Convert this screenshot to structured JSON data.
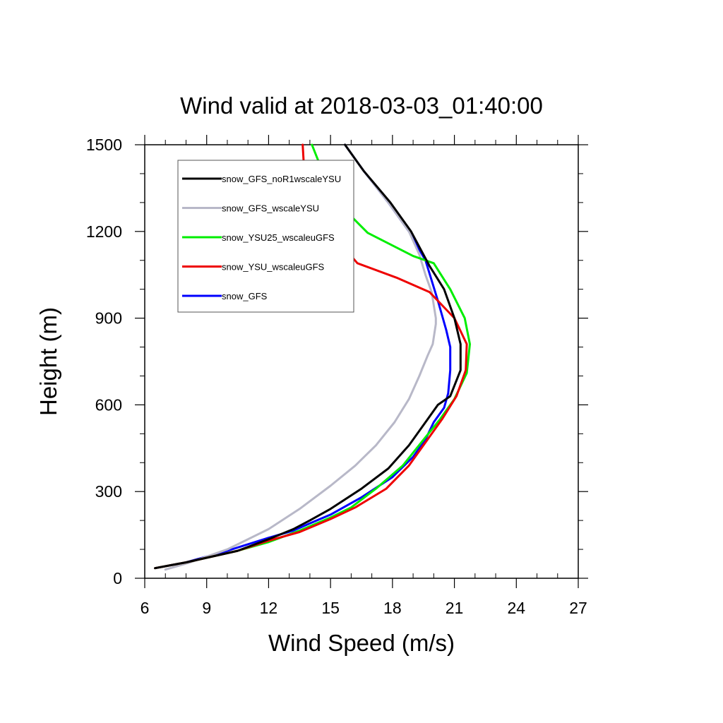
{
  "chart_data": {
    "type": "line",
    "title": "Wind valid at 2018-03-03_01:40:00",
    "xlabel": "Wind Speed (m/s)",
    "ylabel": "Height (m)",
    "xlim": [
      6,
      27
    ],
    "ylim": [
      0,
      1500
    ],
    "x_ticks": [
      6,
      9,
      12,
      15,
      18,
      21,
      24,
      27
    ],
    "y_ticks": [
      0,
      300,
      600,
      900,
      1200,
      1500
    ],
    "x_minor_step": 1,
    "y_minor_step": 100,
    "legend_position": "top-left",
    "series": [
      {
        "name": "snow_GFS",
        "color": "#0000ff",
        "points": [
          [
            6.5,
            35
          ],
          [
            8,
            55
          ],
          [
            10,
            95
          ],
          [
            12,
            140
          ],
          [
            13.2,
            165
          ],
          [
            14,
            190
          ],
          [
            15,
            220
          ],
          [
            16.5,
            280
          ],
          [
            18,
            350
          ],
          [
            19,
            420
          ],
          [
            19.6,
            480
          ],
          [
            20,
            540
          ],
          [
            20.5,
            590
          ],
          [
            20.7,
            640
          ],
          [
            20.8,
            720
          ],
          [
            20.8,
            800
          ],
          [
            20.6,
            860
          ],
          [
            20.2,
            960
          ],
          [
            19.6,
            1100
          ],
          [
            18.8,
            1200
          ],
          [
            17.8,
            1300
          ],
          [
            16.6,
            1410
          ],
          [
            15.7,
            1500
          ]
        ]
      },
      {
        "name": "snow_GFS_wscaleYSU",
        "color": "#b8b8c8",
        "points": [
          [
            7,
            30
          ],
          [
            8.2,
            55
          ],
          [
            10,
            100
          ],
          [
            12,
            170
          ],
          [
            13.5,
            240
          ],
          [
            15,
            320
          ],
          [
            16.2,
            390
          ],
          [
            17.2,
            460
          ],
          [
            18.1,
            540
          ],
          [
            18.8,
            620
          ],
          [
            19.3,
            700
          ],
          [
            19.7,
            770
          ],
          [
            19.95,
            810
          ],
          [
            20.1,
            880
          ],
          [
            20.1,
            900
          ],
          [
            19.9,
            990
          ],
          [
            19.6,
            1050
          ],
          [
            19.3,
            1120
          ],
          [
            18.8,
            1200
          ],
          [
            17.8,
            1300
          ],
          [
            16.6,
            1410
          ],
          [
            15.7,
            1500
          ]
        ]
      },
      {
        "name": "snow_YSU25_wscaleuGFS",
        "color": "#00ee00",
        "points": [
          [
            6.5,
            35
          ],
          [
            8,
            55
          ],
          [
            10.5,
            95
          ],
          [
            12,
            125
          ],
          [
            13.5,
            165
          ],
          [
            15,
            210
          ],
          [
            16,
            245
          ],
          [
            17.2,
            310
          ],
          [
            18.5,
            390
          ],
          [
            19.4,
            470
          ],
          [
            20.3,
            550
          ],
          [
            21,
            620
          ],
          [
            21.6,
            710
          ],
          [
            21.75,
            810
          ],
          [
            21.5,
            900
          ],
          [
            20.8,
            1000
          ],
          [
            20,
            1090
          ],
          [
            19,
            1115
          ],
          [
            16.8,
            1195
          ],
          [
            15.2,
            1310
          ],
          [
            14.6,
            1410
          ],
          [
            14.1,
            1500
          ]
        ]
      },
      {
        "name": "snow_YSU_wscaleuGFS",
        "color": "#ee0000",
        "points": [
          [
            6.5,
            35
          ],
          [
            8,
            55
          ],
          [
            10.5,
            95
          ],
          [
            12,
            130
          ],
          [
            13.5,
            160
          ],
          [
            15,
            205
          ],
          [
            16.2,
            245
          ],
          [
            17.7,
            310
          ],
          [
            18.8,
            390
          ],
          [
            19.6,
            470
          ],
          [
            20.4,
            550
          ],
          [
            21.1,
            630
          ],
          [
            21.55,
            720
          ],
          [
            21.6,
            810
          ],
          [
            21,
            900
          ],
          [
            19.8,
            990
          ],
          [
            18.2,
            1040
          ],
          [
            16.3,
            1090
          ],
          [
            15.1,
            1190
          ],
          [
            14.3,
            1290
          ],
          [
            13.8,
            1400
          ],
          [
            13.7,
            1440
          ],
          [
            13.65,
            1500
          ]
        ]
      },
      {
        "name": "snow_GFS_noR1wscaleYSU",
        "color": "#000000",
        "points": [
          [
            6.5,
            35
          ],
          [
            8,
            55
          ],
          [
            10.5,
            95
          ],
          [
            12,
            135
          ],
          [
            13.2,
            170
          ],
          [
            14,
            200
          ],
          [
            15,
            240
          ],
          [
            16.5,
            310
          ],
          [
            17.8,
            380
          ],
          [
            18.8,
            460
          ],
          [
            19.7,
            550
          ],
          [
            20.2,
            600
          ],
          [
            20.8,
            630
          ],
          [
            21.3,
            720
          ],
          [
            21.3,
            810
          ],
          [
            21,
            900
          ],
          [
            20.5,
            1000
          ],
          [
            19.8,
            1080
          ],
          [
            18.9,
            1200
          ],
          [
            17.9,
            1300
          ],
          [
            16.6,
            1410
          ],
          [
            15.7,
            1500
          ]
        ]
      }
    ],
    "legend_order": [
      "snow_GFS_noR1wscaleYSU",
      "snow_GFS_wscaleYSU",
      "snow_YSU25_wscaleuGFS",
      "snow_YSU_wscaleuGFS",
      "snow_GFS"
    ]
  }
}
